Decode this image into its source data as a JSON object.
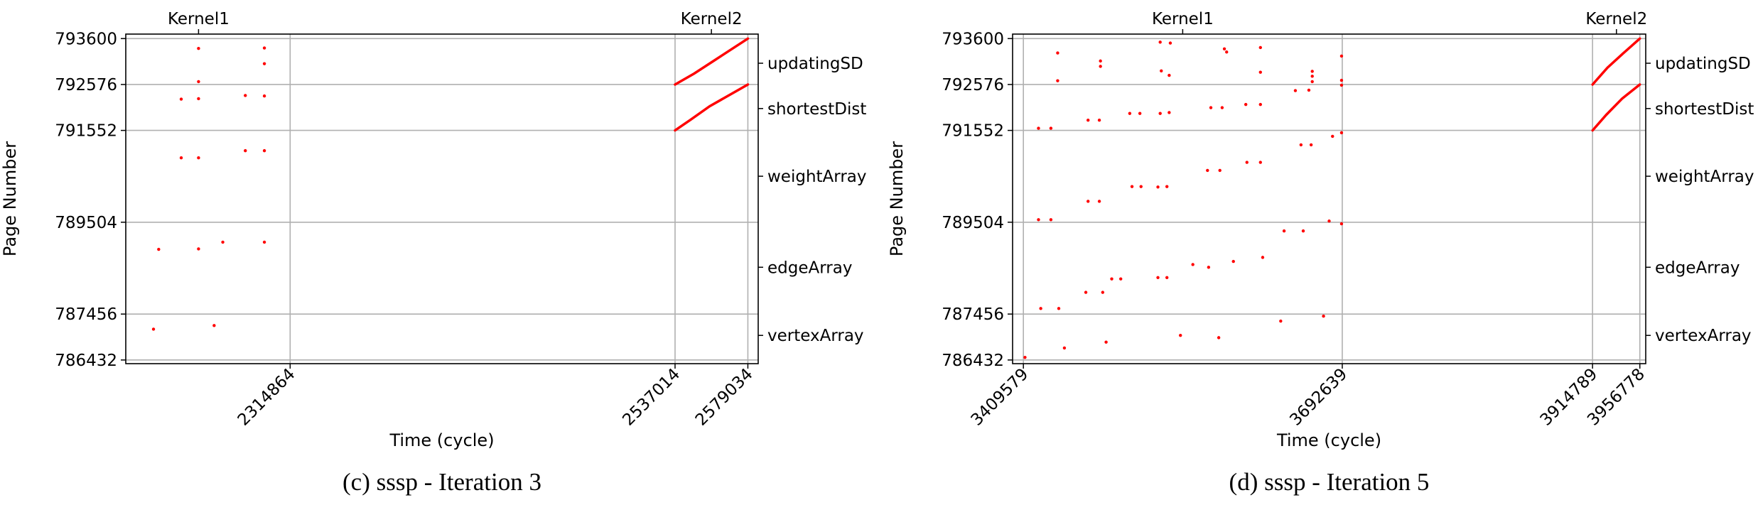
{
  "chart_data": [
    {
      "type": "scatter",
      "caption": "(c) sssp - Iteration 3",
      "xlabel": "Time (cycle)",
      "ylabel": "Page Number",
      "xlim": [
        2220000,
        2585000
      ],
      "ylim": [
        786350,
        793700
      ],
      "grid": true,
      "y_ticks": [
        786432,
        787456,
        789504,
        791552,
        792576,
        793600
      ],
      "x_ticks": [
        2314864,
        2537014,
        2579034
      ],
      "kernel_labels": [
        {
          "label": "Kernel1",
          "x": 2262000
        },
        {
          "label": "Kernel2",
          "x": 2558000
        }
      ],
      "region_labels": [
        {
          "label": "updatingSD",
          "y": 793050
        },
        {
          "label": "shortestDist",
          "y": 792040
        },
        {
          "label": "weightArray",
          "y": 790530
        },
        {
          "label": "edgeArray",
          "y": 788500
        },
        {
          "label": "vertexArray",
          "y": 786980
        }
      ],
      "series": [
        {
          "color": "#ff0000",
          "points": [
            [
              2236000,
              787120
            ],
            [
              2239000,
              788900
            ],
            [
              2252000,
              792250
            ],
            [
              2252000,
              790940
            ],
            [
              2262000,
              793380
            ],
            [
              2262000,
              792640
            ],
            [
              2262000,
              792260
            ],
            [
              2262000,
              790940
            ],
            [
              2262000,
              788910
            ],
            [
              2271000,
              787200
            ],
            [
              2276000,
              789060
            ],
            [
              2289000,
              792330
            ],
            [
              2289000,
              791100
            ],
            [
              2300000,
              793390
            ],
            [
              2300000,
              793040
            ],
            [
              2300000,
              792320
            ],
            [
              2300000,
              791100
            ],
            [
              2300000,
              789060
            ]
          ]
        },
        {
          "color": "#ff0000",
          "lines": [
            [
              [
                2537014,
                792576
              ],
              [
                2548000,
                792820
              ],
              [
                2560000,
                793120
              ],
              [
                2579034,
                793600
              ]
            ],
            [
              [
                2537014,
                791552
              ],
              [
                2546000,
                791790
              ],
              [
                2557000,
                792090
              ],
              [
                2579034,
                792576
              ]
            ]
          ]
        }
      ]
    },
    {
      "type": "scatter",
      "caption": "(d) sssp - Iteration 5",
      "xlabel": "Time (cycle)",
      "ylabel": "Page Number",
      "xlim": [
        3400000,
        3962000
      ],
      "ylim": [
        786350,
        793700
      ],
      "grid": true,
      "y_ticks": [
        786432,
        787456,
        789504,
        791552,
        792576,
        793600
      ],
      "x_ticks": [
        3409579,
        3692639,
        3914789,
        3956778
      ],
      "kernel_labels": [
        {
          "label": "Kernel1",
          "x": 3551000
        },
        {
          "label": "Kernel2",
          "x": 3936000
        }
      ],
      "region_labels": [
        {
          "label": "updatingSD",
          "y": 793050
        },
        {
          "label": "shortestDist",
          "y": 792040
        },
        {
          "label": "weightArray",
          "y": 790530
        },
        {
          "label": "edgeArray",
          "y": 788500
        },
        {
          "label": "vertexArray",
          "y": 786980
        }
      ],
      "series": [
        {
          "color": "#ff0000",
          "points": [
            [
              3411000,
              786490
            ],
            [
              3425000,
              787580
            ],
            [
              3441000,
              787580
            ],
            [
              3446000,
              786700
            ],
            [
              3465000,
              787940
            ],
            [
              3480000,
              787940
            ],
            [
              3483000,
              786830
            ],
            [
              3488000,
              788240
            ],
            [
              3496000,
              788240
            ],
            [
              3423000,
              789560
            ],
            [
              3434000,
              789560
            ],
            [
              3423000,
              791600
            ],
            [
              3434000,
              791600
            ],
            [
              3440000,
              793280
            ],
            [
              3440000,
              792660
            ],
            [
              3467000,
              789970
            ],
            [
              3477000,
              789970
            ],
            [
              3467000,
              791780
            ],
            [
              3477000,
              791780
            ],
            [
              3478000,
              792980
            ],
            [
              3478000,
              793100
            ],
            [
              3506000,
              790300
            ],
            [
              3514000,
              790300
            ],
            [
              3504000,
              791930
            ],
            [
              3513000,
              791930
            ],
            [
              3529000,
              790290
            ],
            [
              3537000,
              790300
            ],
            [
              3529000,
              788270
            ],
            [
              3537000,
              788270
            ],
            [
              3531000,
              791930
            ],
            [
              3539000,
              791950
            ],
            [
              3532000,
              792880
            ],
            [
              3539000,
              792780
            ],
            [
              3531000,
              793520
            ],
            [
              3540000,
              793500
            ],
            [
              3549000,
              786980
            ],
            [
              3560000,
              788560
            ],
            [
              3574000,
              788500
            ],
            [
              3573000,
              790660
            ],
            [
              3584000,
              790660
            ],
            [
              3576000,
              792060
            ],
            [
              3586000,
              792060
            ],
            [
              3583000,
              786930
            ],
            [
              3590000,
              793300
            ],
            [
              3588000,
              793370
            ],
            [
              3596000,
              788630
            ],
            [
              3608000,
              790840
            ],
            [
              3620000,
              790840
            ],
            [
              3607000,
              792130
            ],
            [
              3620000,
              792130
            ],
            [
              3620000,
              792850
            ],
            [
              3622000,
              788720
            ],
            [
              3620000,
              793400
            ],
            [
              3638000,
              787300
            ],
            [
              3641000,
              789310
            ],
            [
              3658000,
              789310
            ],
            [
              3651000,
              792440
            ],
            [
              3663000,
              792450
            ],
            [
              3656000,
              791230
            ],
            [
              3665000,
              791230
            ],
            [
              3666000,
              792870
            ],
            [
              3666000,
              792760
            ],
            [
              3666000,
              792640
            ],
            [
              3676000,
              787410
            ],
            [
              3681000,
              789530
            ],
            [
              3684000,
              791420
            ],
            [
              3692000,
              792560
            ],
            [
              3692000,
              792670
            ],
            [
              3692000,
              793210
            ],
            [
              3692000,
              791500
            ],
            [
              3692000,
              789470
            ]
          ]
        },
        {
          "color": "#ff0000",
          "lines": [
            [
              [
                3914789,
                792576
              ],
              [
                3928000,
                792950
              ],
              [
                3942000,
                793270
              ],
              [
                3956778,
                793600
              ]
            ],
            [
              [
                3914789,
                791552
              ],
              [
                3927000,
                791900
              ],
              [
                3941000,
                792260
              ],
              [
                3956778,
                792576
              ]
            ]
          ]
        }
      ]
    }
  ]
}
